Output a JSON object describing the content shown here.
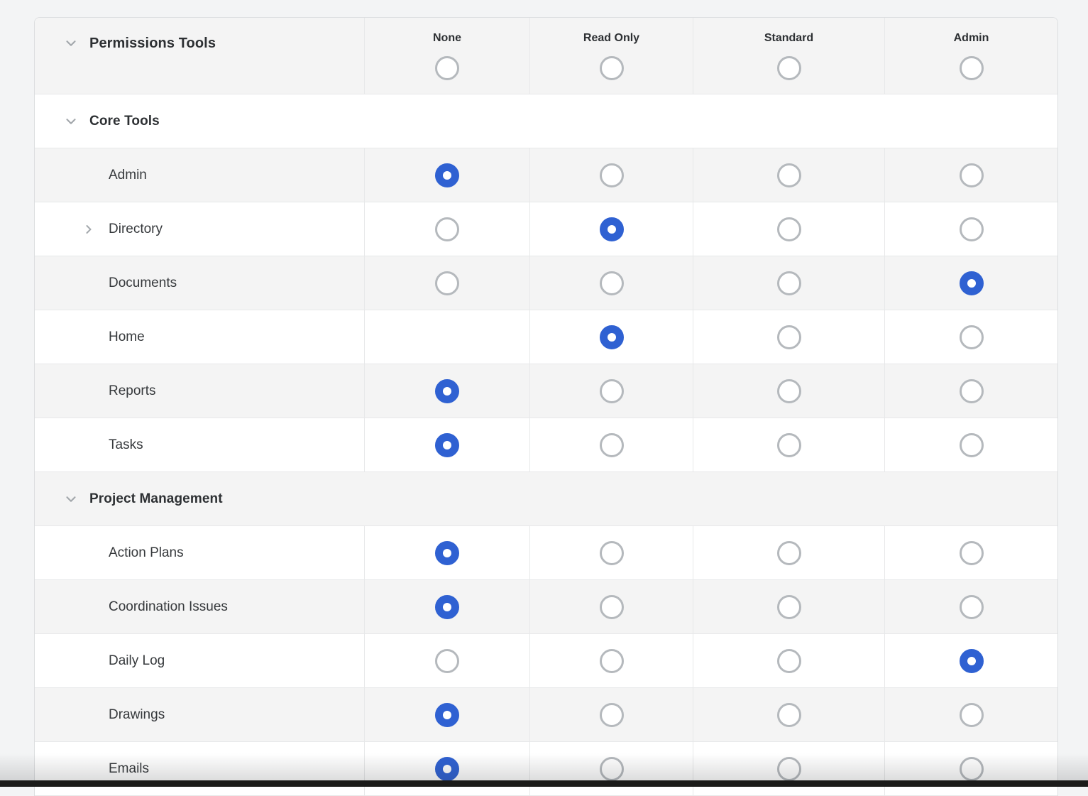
{
  "colors": {
    "accent_blue": "#2f61d2",
    "radio_border_gray": "#b5b9bd",
    "row_alt_bg": "#f4f4f4",
    "page_bg": "#f3f4f5",
    "bottom_bar": "#1b1b19"
  },
  "icons": {
    "section_expand": "chevron-down-icon",
    "row_expand": "chevron-right-icon"
  },
  "header": {
    "title": "Permissions Tools",
    "columns": [
      {
        "id": "none",
        "label": "None"
      },
      {
        "id": "read_only",
        "label": "Read Only"
      },
      {
        "id": "standard",
        "label": "Standard"
      },
      {
        "id": "admin",
        "label": "Admin"
      }
    ]
  },
  "sections": [
    {
      "title": "Core Tools",
      "rows": [
        {
          "label": "Admin",
          "selected": "none"
        },
        {
          "label": "Directory",
          "selected": "read_only",
          "expandable": true
        },
        {
          "label": "Documents",
          "selected": "admin"
        },
        {
          "label": "Home",
          "selected": "read_only",
          "no_radio": [
            "none"
          ]
        },
        {
          "label": "Reports",
          "selected": "none"
        },
        {
          "label": "Tasks",
          "selected": "none"
        }
      ]
    },
    {
      "title": "Project Management",
      "rows": [
        {
          "label": "Action Plans",
          "selected": "none"
        },
        {
          "label": "Coordination Issues",
          "selected": "none"
        },
        {
          "label": "Daily Log",
          "selected": "admin"
        },
        {
          "label": "Drawings",
          "selected": "none"
        },
        {
          "label": "Emails",
          "selected": "none"
        }
      ]
    }
  ]
}
